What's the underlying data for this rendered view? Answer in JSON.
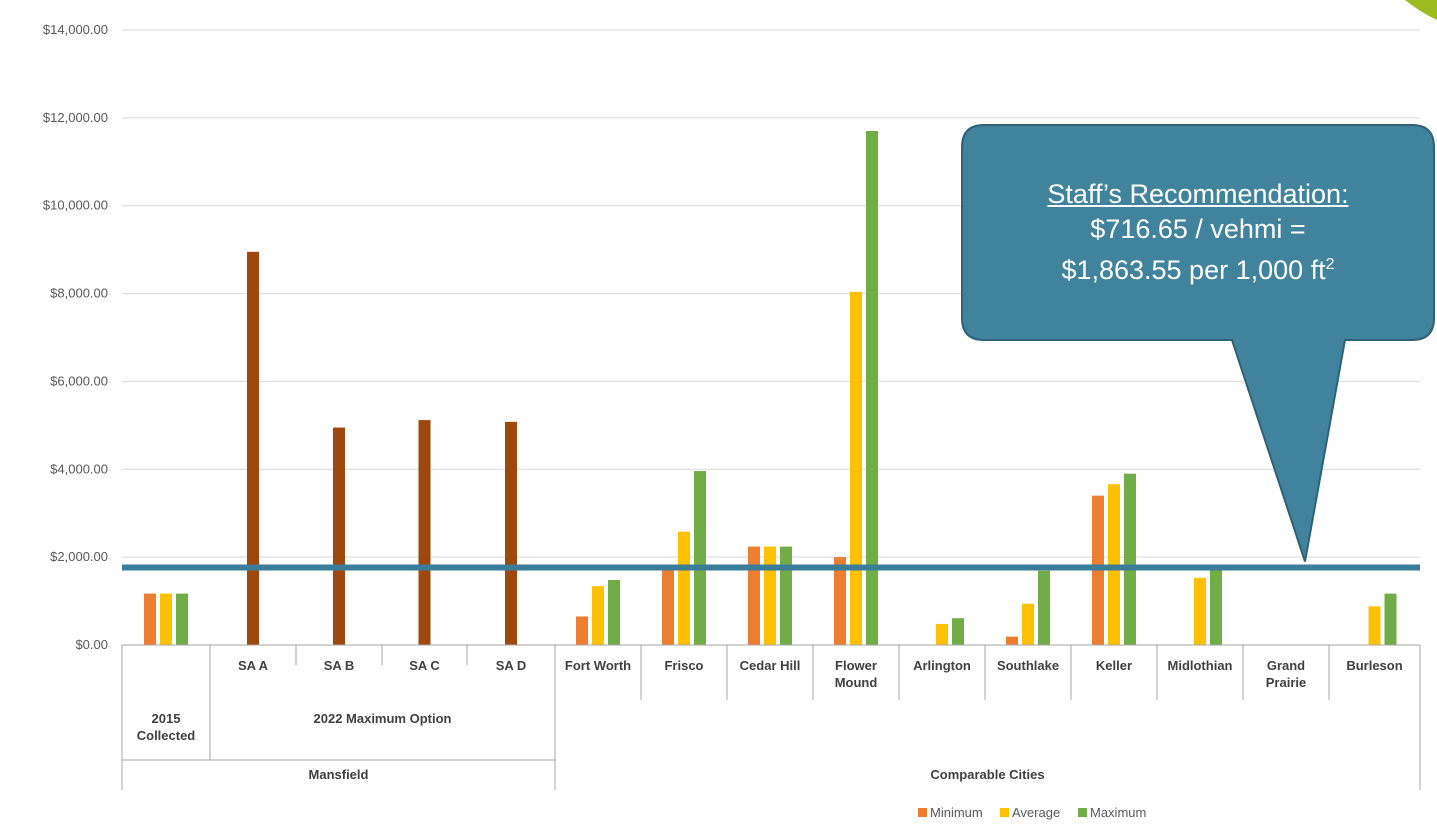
{
  "chart_data": {
    "type": "bar",
    "ylim": [
      0,
      14000
    ],
    "yticks": [
      0,
      2000,
      4000,
      6000,
      8000,
      10000,
      12000,
      14000
    ],
    "ytick_labels": [
      "$0.00",
      "$2,000.00",
      "$4,000.00",
      "$6,000.00",
      "$8,000.00",
      "$10,000.00",
      "$12,000.00",
      "$14,000.00"
    ],
    "grid": true,
    "legend_placement": "bottom",
    "categories": [
      {
        "label": [
          "2015",
          "Collected"
        ],
        "group": "Mansfield",
        "kind": "triple",
        "min": 1170,
        "avg": 1170,
        "max": 1170
      },
      {
        "label": [
          "SA A"
        ],
        "group": "Mansfield",
        "kind": "single",
        "value": 8950
      },
      {
        "label": [
          "SA B"
        ],
        "group": "Mansfield",
        "kind": "single",
        "value": 4950
      },
      {
        "label": [
          "SA C"
        ],
        "group": "Mansfield",
        "kind": "single",
        "value": 5120
      },
      {
        "label": [
          "SA D"
        ],
        "group": "Mansfield",
        "kind": "single",
        "value": 5080
      },
      {
        "label": [
          "Fort Worth"
        ],
        "group": "Comparable Cities",
        "kind": "triple",
        "min": 650,
        "avg": 1340,
        "max": 1480
      },
      {
        "label": [
          "Frisco"
        ],
        "group": "Comparable Cities",
        "kind": "triple",
        "min": 1750,
        "avg": 2580,
        "max": 3960
      },
      {
        "label": [
          "Cedar Hill"
        ],
        "group": "Comparable Cities",
        "kind": "triple",
        "min": 2240,
        "avg": 2240,
        "max": 2240
      },
      {
        "label": [
          "Flower",
          "Mound"
        ],
        "group": "Comparable Cities",
        "kind": "triple",
        "min": 2000,
        "avg": 8040,
        "max": 11700
      },
      {
        "label": [
          "Arlington"
        ],
        "group": "Comparable Cities",
        "kind": "triple",
        "min": 0,
        "avg": 480,
        "max": 610
      },
      {
        "label": [
          "Southlake"
        ],
        "group": "Comparable Cities",
        "kind": "triple",
        "min": 190,
        "avg": 940,
        "max": 1690
      },
      {
        "label": [
          "Keller"
        ],
        "group": "Comparable Cities",
        "kind": "triple",
        "min": 3400,
        "avg": 3660,
        "max": 3900
      },
      {
        "label": [
          "Midlothian"
        ],
        "group": "Comparable Cities",
        "kind": "triple",
        "min": 0,
        "avg": 1530,
        "max": 1740
      },
      {
        "label": [
          "Grand",
          "Prairie"
        ],
        "group": "Comparable Cities",
        "kind": "triple",
        "min": 0,
        "avg": 0,
        "max": 0
      },
      {
        "label": [
          "Burleson"
        ],
        "group": "Comparable Cities",
        "kind": "triple",
        "min": 0,
        "avg": 880,
        "max": 1170
      }
    ],
    "subgroups": [
      {
        "label": "2015\nCollected",
        "span": [
          0,
          0
        ]
      },
      {
        "label": "2022 Maximum Option",
        "span": [
          1,
          4
        ]
      }
    ],
    "groups": [
      {
        "label": "Mansfield",
        "span": [
          0,
          4
        ]
      },
      {
        "label": "Comparable Cities",
        "span": [
          5,
          14
        ]
      }
    ],
    "series": [
      {
        "name": "Minimum",
        "color": "#ED7D31"
      },
      {
        "name": "Average",
        "color": "#FFC000"
      },
      {
        "name": "Maximum",
        "color": "#70AD47"
      }
    ],
    "single_color": "#9E480E",
    "reference_line": {
      "value": 1764,
      "color": "#3A7D98"
    },
    "callout": {
      "title": "Staff’s Recommendation:",
      "line1": "$716.65 / vehmi =",
      "line2": "$1,863.55 per 1,000 ft",
      "line2_sup": "2",
      "fill": "#41839D",
      "stroke": "#2E6276"
    }
  }
}
